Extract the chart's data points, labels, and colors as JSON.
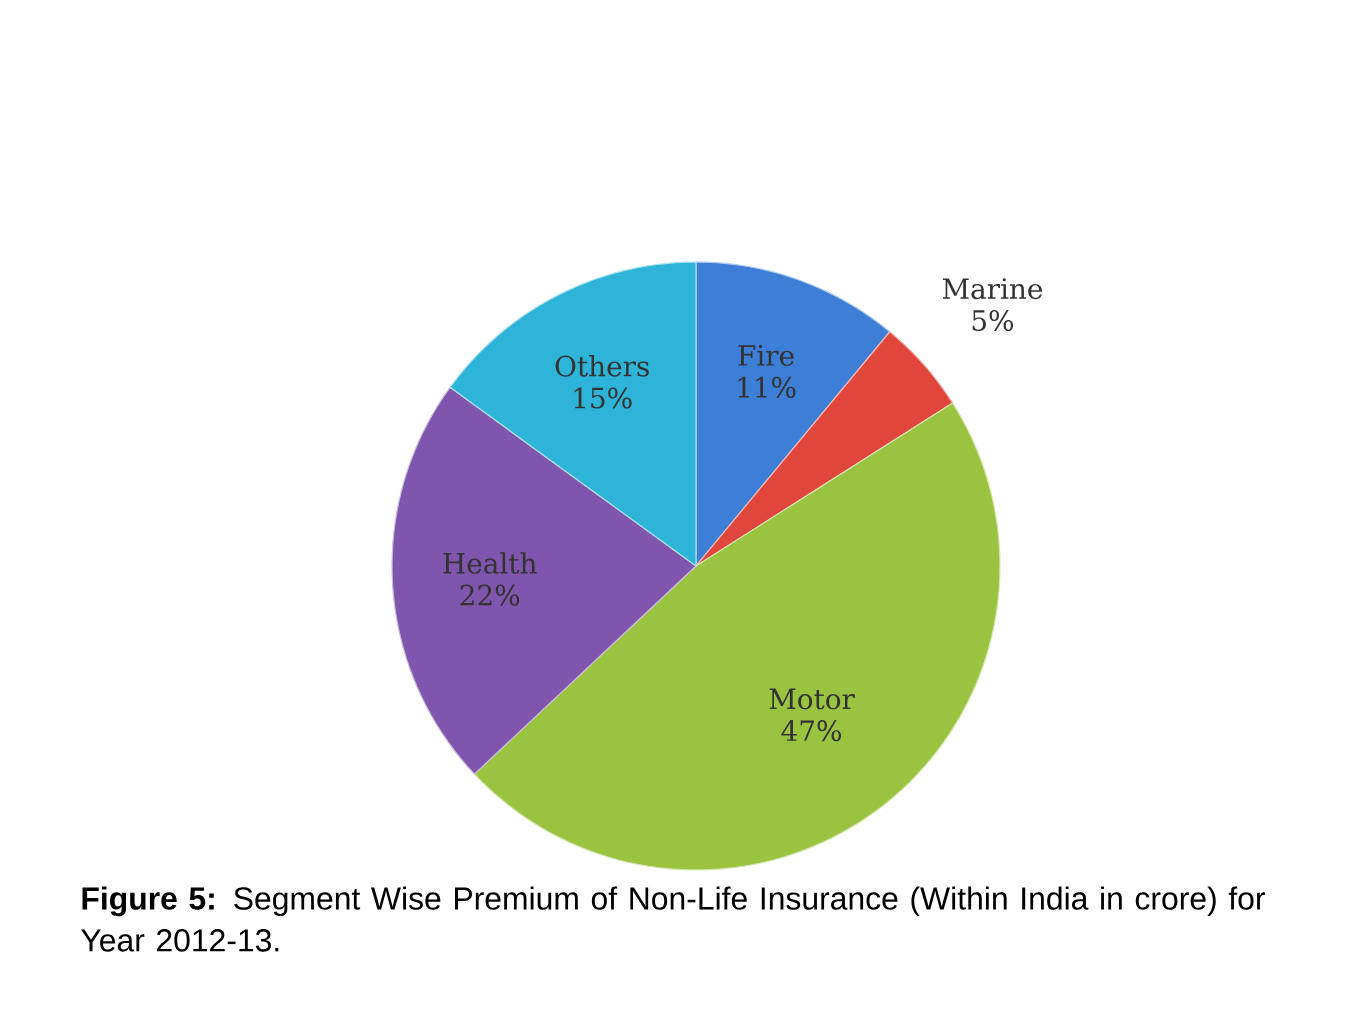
{
  "chart_data": {
    "type": "pie",
    "categories": [
      "Fire",
      "Marine",
      "Motor",
      "Health",
      "Others"
    ],
    "values": [
      11,
      5,
      47,
      22,
      15
    ],
    "colors": [
      "#3d7fd6",
      "#e0463c",
      "#9ac440",
      "#7f55ad",
      "#2db4d8"
    ],
    "value_labels": [
      "11%",
      "5%",
      "47%",
      "22%",
      "15%"
    ],
    "annotations": [
      "**Figure 5:** Segment Wise Premium of Non-Life Insurance (Within India in crore) for Year 2012-13."
    ]
  }
}
